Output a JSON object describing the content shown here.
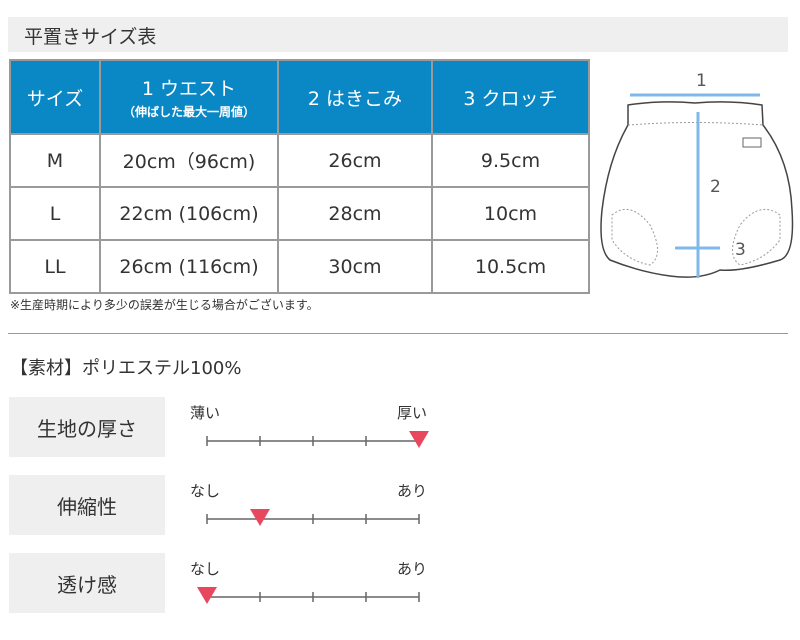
{
  "title": "平置きサイズ表",
  "table": {
    "headers": [
      {
        "label": "サイズ"
      },
      {
        "label": "1 ウエスト",
        "sub": "（伸ばした最大一周値）"
      },
      {
        "label": "2 はきこみ"
      },
      {
        "label": "3 クロッチ"
      }
    ],
    "rows": [
      [
        "M",
        "20cm（96cm)",
        "26cm",
        "9.5cm"
      ],
      [
        "L",
        "22cm (106cm)",
        "28cm",
        "10cm"
      ],
      [
        "LL",
        "26cm (116cm)",
        "30cm",
        "10.5cm"
      ]
    ]
  },
  "note": "※生産時期により多少の誤差が生じる場合がございます。",
  "diagram": {
    "labels": [
      "1",
      "2",
      "3"
    ],
    "arrow_color": "#7fb8ea"
  },
  "material": "【素材】ポリエステル100%",
  "scales": [
    {
      "label": "生地の厚さ",
      "min_label": "薄い",
      "max_label": "厚い",
      "level": 5,
      "steps": 5
    },
    {
      "label": "伸縮性",
      "min_label": "なし",
      "max_label": "あり",
      "level": 2,
      "steps": 5
    },
    {
      "label": "透け感",
      "min_label": "なし",
      "max_label": "あり",
      "level": 1,
      "steps": 5
    }
  ],
  "colors": {
    "header_blue": "#0a88c6",
    "marker": "#e8485e"
  }
}
